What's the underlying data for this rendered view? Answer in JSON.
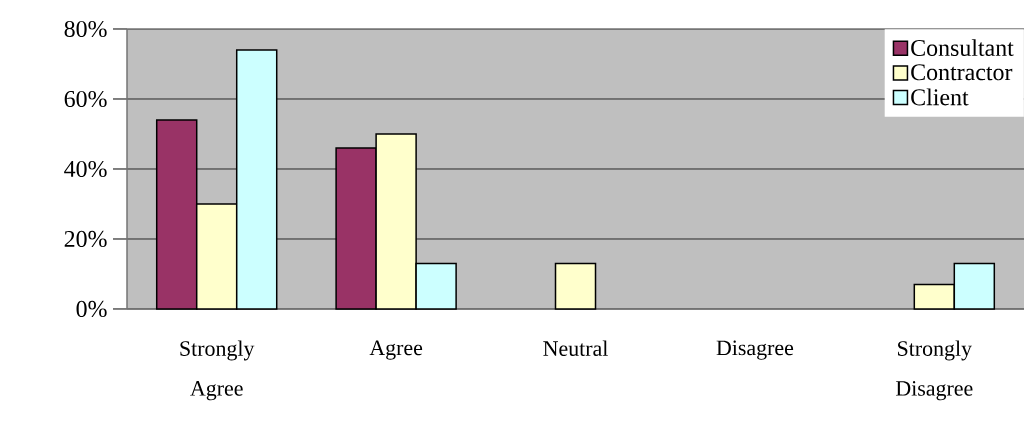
{
  "chart_data": {
    "type": "bar",
    "categories": [
      "Strongly Agree",
      "Agree",
      "Neutral",
      "Disagree",
      "Strongly Disagree"
    ],
    "series": [
      {
        "name": "Consultant",
        "color": "#993366",
        "values": [
          54,
          46,
          null,
          null,
          null
        ]
      },
      {
        "name": "Contractor",
        "color": "#ffffcc",
        "values": [
          30,
          50,
          13,
          null,
          7
        ]
      },
      {
        "name": "Client",
        "color": "#ccffff",
        "values": [
          74,
          13,
          null,
          null,
          13
        ]
      }
    ],
    "ylim": [
      0,
      80
    ],
    "yticks": [
      {
        "value": 0,
        "label": "0%"
      },
      {
        "value": 20,
        "label": "20%"
      },
      {
        "value": 40,
        "label": "40%"
      },
      {
        "value": 60,
        "label": "60%"
      },
      {
        "value": 80,
        "label": "80%"
      }
    ],
    "grid": "y",
    "legend": "top right"
  }
}
